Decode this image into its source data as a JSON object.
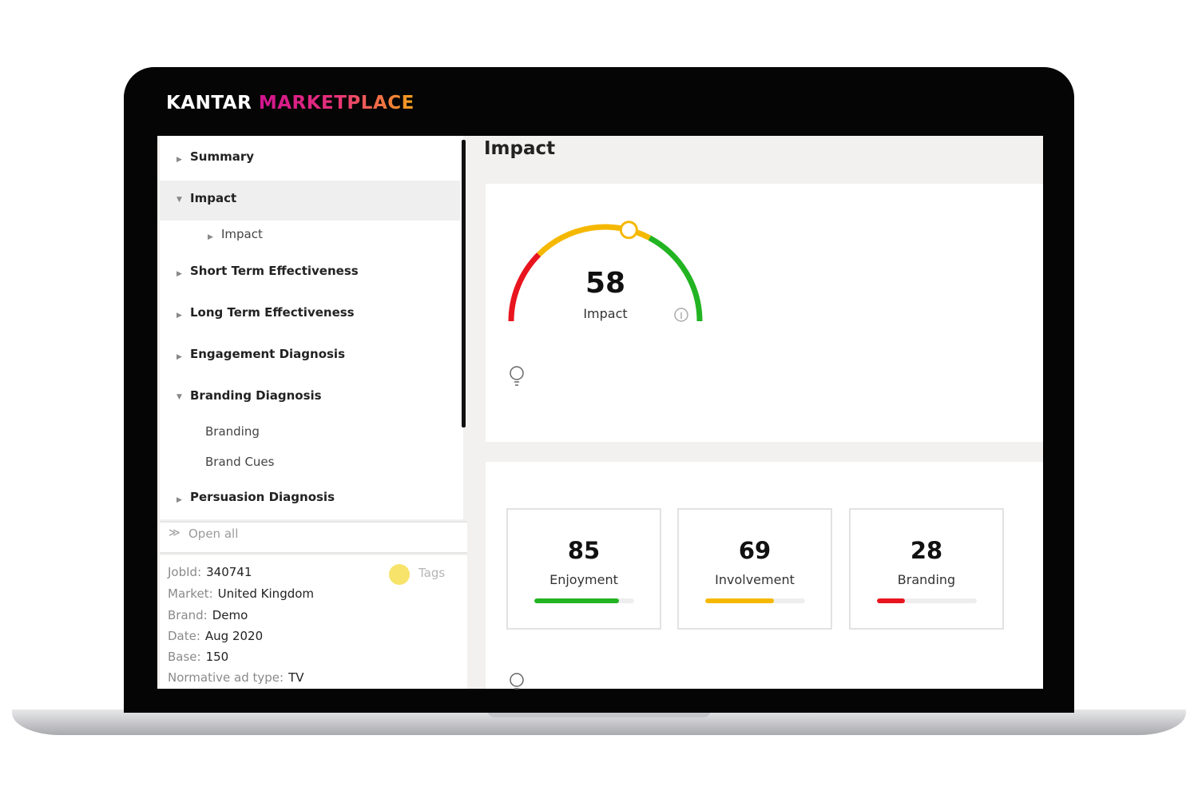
{
  "header": {
    "brand": "KANTAR",
    "product": "MARKETPLACE"
  },
  "sidebar": {
    "nav": [
      {
        "label": "Summary"
      },
      {
        "label": "Impact",
        "children": [
          {
            "label": "Impact"
          }
        ]
      },
      {
        "label": "Short Term Effectiveness"
      },
      {
        "label": "Long Term Effectiveness"
      },
      {
        "label": "Engagement Diagnosis"
      },
      {
        "label": "Branding Diagnosis",
        "children": [
          {
            "label": "Branding"
          },
          {
            "label": "Brand Cues"
          }
        ]
      },
      {
        "label": "Persuasion Diagnosis"
      }
    ],
    "open_all": "Open all",
    "tags": "Tags",
    "details": [
      {
        "label": "JobId:",
        "value": "340741"
      },
      {
        "label": "Market:",
        "value": "United Kingdom"
      },
      {
        "label": "Brand:",
        "value": "Demo"
      },
      {
        "label": "Date:",
        "value": "Aug 2020"
      },
      {
        "label": "Base:",
        "value": "150"
      },
      {
        "label": "Normative ad type:",
        "value": "TV"
      }
    ]
  },
  "main": {
    "title": "Impact",
    "gauge": {
      "value": 58,
      "label": "Impact"
    },
    "metrics": [
      {
        "value": 85,
        "label": "Enjoyment",
        "color": "#22b422"
      },
      {
        "value": 69,
        "label": "Involvement",
        "color": "#f5b800"
      },
      {
        "value": 28,
        "label": "Branding",
        "color": "#e8151f"
      }
    ]
  }
}
